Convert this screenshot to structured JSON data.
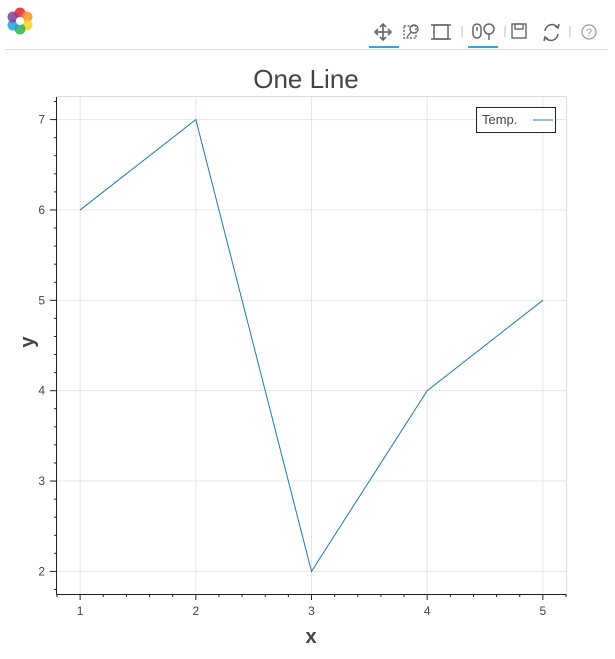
{
  "toolbar": {
    "logo": "bokeh-logo-icon",
    "tools": [
      {
        "name": "pan-tool",
        "icon": "move-arrows-icon",
        "active": true
      },
      {
        "name": "box-zoom-tool",
        "icon": "box-zoom-icon",
        "active": false
      },
      {
        "name": "reset-view-tool",
        "icon": "square-frame-icon",
        "active": false
      },
      {
        "name": "wheel-zoom-tool",
        "icon": "wheel-zoom-icon",
        "active": true
      },
      {
        "name": "save-tool",
        "icon": "floppy-disk-icon",
        "active": false
      },
      {
        "name": "reset-tool",
        "icon": "refresh-icon",
        "active": false
      },
      {
        "name": "help-tool",
        "icon": "question-circle-icon",
        "active": false
      }
    ],
    "accent_color": "#26aae1"
  },
  "chart_data": {
    "type": "line",
    "title": "One Line",
    "xlabel": "x",
    "ylabel": "y",
    "xlim": [
      0.8,
      5.2
    ],
    "ylim": [
      1.75,
      7.25
    ],
    "x_ticks": [
      1,
      2,
      3,
      4,
      5
    ],
    "y_ticks": [
      2,
      3,
      4,
      5,
      6,
      7
    ],
    "grid": true,
    "legend_position": "top-right",
    "series": [
      {
        "name": "Temp.",
        "x": [
          1,
          2,
          3,
          4,
          5
        ],
        "y": [
          6,
          7,
          2,
          4,
          5
        ],
        "color": "#1f77b4"
      }
    ]
  }
}
